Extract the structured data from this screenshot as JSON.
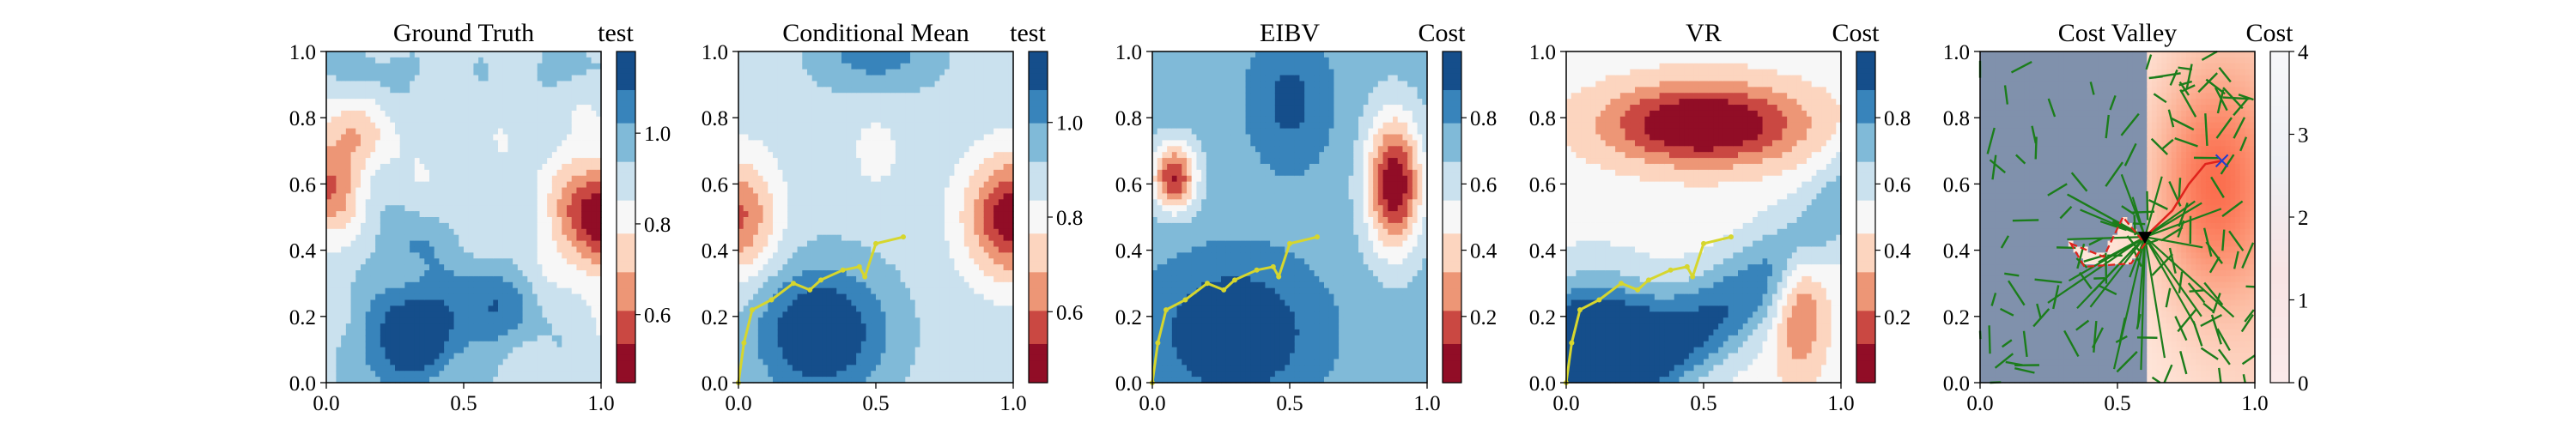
{
  "figure": {
    "panels": [
      {
        "title": "Ground Truth",
        "colorbar_label": "test",
        "colorbar_ticks": [
          "0.6",
          "0.8",
          "1.0"
        ],
        "colorbar_tick_values": [
          0.6,
          0.8,
          1.0
        ],
        "colorbar_range": [
          0.45,
          1.18
        ],
        "colormap": "RdBu",
        "field": "ground_truth",
        "has_path": false
      },
      {
        "title": "Conditional Mean",
        "colorbar_label": "test",
        "colorbar_ticks": [
          "0.6",
          "0.8",
          "1.0"
        ],
        "colorbar_tick_values": [
          0.6,
          0.8,
          1.0
        ],
        "colorbar_range": [
          0.45,
          1.15
        ],
        "colormap": "RdBu",
        "field": "conditional_mean",
        "has_path": true
      },
      {
        "title": "EIBV",
        "colorbar_label": "Cost",
        "colorbar_ticks": [
          "0.2",
          "0.4",
          "0.6",
          "0.8"
        ],
        "colorbar_tick_values": [
          0.2,
          0.4,
          0.6,
          0.8
        ],
        "colorbar_range": [
          0.0,
          1.0
        ],
        "colormap": "RdBu",
        "field": "eibv",
        "has_path": true
      },
      {
        "title": "VR",
        "colorbar_label": "Cost",
        "colorbar_ticks": [
          "0.2",
          "0.4",
          "0.6",
          "0.8"
        ],
        "colorbar_tick_values": [
          0.2,
          0.4,
          0.6,
          0.8
        ],
        "colorbar_range": [
          0.0,
          1.0
        ],
        "colormap": "RdBu",
        "field": "vr",
        "has_path": true
      },
      {
        "title": "Cost Valley",
        "colorbar_label": "Cost",
        "colorbar_ticks": [
          "0",
          "1",
          "2",
          "3",
          "4"
        ],
        "colorbar_tick_values": [
          0,
          1,
          2,
          3,
          4
        ],
        "colorbar_range": [
          0,
          4
        ],
        "colormap": "Reds",
        "field": "cost_valley",
        "has_path": false
      }
    ],
    "axis_x_ticks": [
      "0.0",
      "0.5",
      "1.0"
    ],
    "axis_y_ticks": [
      "0.0",
      "0.2",
      "0.4",
      "0.6",
      "0.8",
      "1.0"
    ]
  },
  "chart_data": {
    "type": "heatmap",
    "description_fields": [
      "Ground Truth",
      "Conditional Mean",
      "EIBV",
      "VR",
      "Cost Valley"
    ],
    "xlim": [
      0.0,
      1.0
    ],
    "ylim": [
      0.0,
      1.0
    ],
    "agent_path": {
      "x": [
        0.0,
        0.02,
        0.05,
        0.12,
        0.2,
        0.26,
        0.3,
        0.38,
        0.44,
        0.46,
        0.5,
        0.6
      ],
      "y": [
        0.0,
        0.12,
        0.22,
        0.25,
        0.3,
        0.28,
        0.31,
        0.34,
        0.35,
        0.32,
        0.42,
        0.44
      ]
    },
    "cost_valley_polygon": {
      "x": [
        0.33,
        0.45,
        0.52,
        0.6,
        0.55,
        0.38
      ],
      "y": [
        0.42,
        0.38,
        0.5,
        0.42,
        0.36,
        0.35
      ]
    },
    "cost_valley_current": {
      "x": 0.6,
      "y": 0.44
    },
    "cost_valley_target": {
      "x": 0.88,
      "y": 0.67
    },
    "cost_valley_planned_path": {
      "x": [
        0.6,
        0.7,
        0.76,
        0.82,
        0.88
      ],
      "y": [
        0.44,
        0.52,
        0.6,
        0.66,
        0.67
      ]
    }
  },
  "colors": {
    "path": "#d6d62e",
    "tree": "#1b7d1b",
    "polygon": "#e0231c",
    "marker_target": "#1f3fd0",
    "marker_current": "#000000"
  }
}
